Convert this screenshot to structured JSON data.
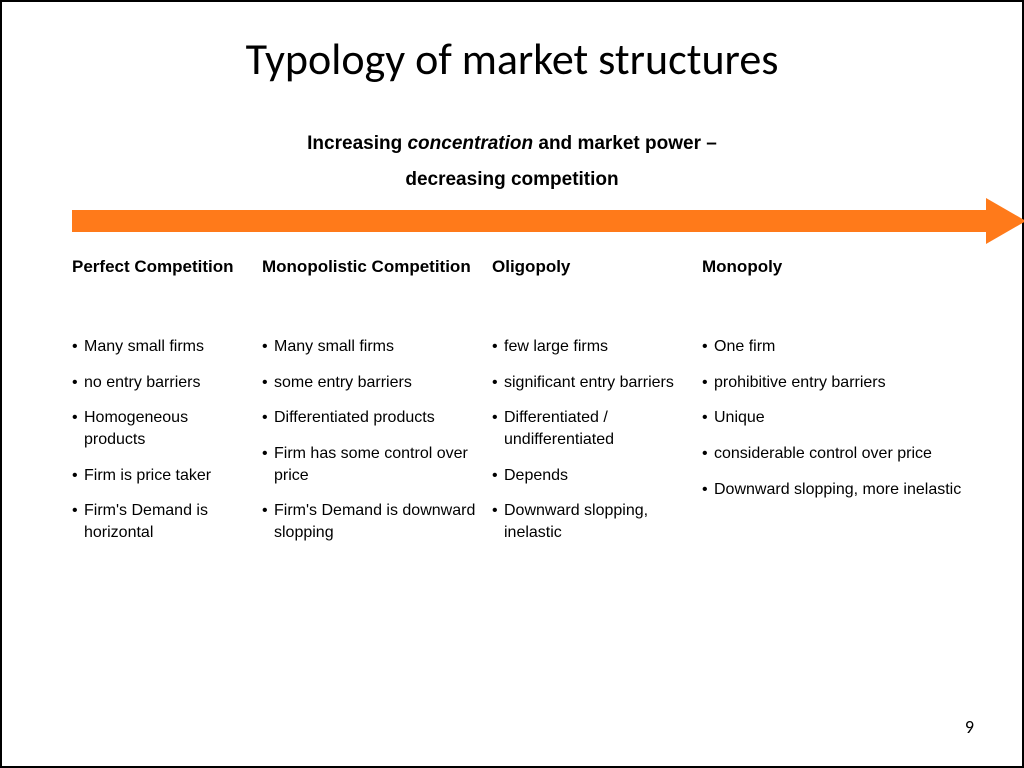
{
  "title": "Typology of market structures",
  "subtitle": {
    "line1_pre": "Increasing ",
    "line1_em": "concentration",
    "line1_post": " and market power –",
    "line2": "decreasing competition"
  },
  "arrow_color": "#ff7a1a",
  "columns": [
    {
      "heading": "Perfect Competition",
      "items": [
        "Many small firms",
        "no entry barriers",
        "Homogeneous products",
        "Firm is price taker",
        "Firm's Demand is horizontal"
      ]
    },
    {
      "heading": "Monopolistic Competition",
      "items": [
        "Many small firms",
        "some entry barriers",
        "Differentiated products",
        "Firm has some control over price",
        "Firm's Demand is downward slopping"
      ]
    },
    {
      "heading": "Oligopoly",
      "items": [
        "few large firms",
        "significant entry barriers",
        "Differentiated / undifferentiated",
        "Depends",
        "Downward slopping, inelastic"
      ]
    },
    {
      "heading": "Monopoly",
      "items": [
        "One firm",
        "prohibitive entry barriers",
        "Unique",
        "considerable control over price",
        "Downward slopping, more inelastic"
      ]
    }
  ],
  "page_number": "9"
}
